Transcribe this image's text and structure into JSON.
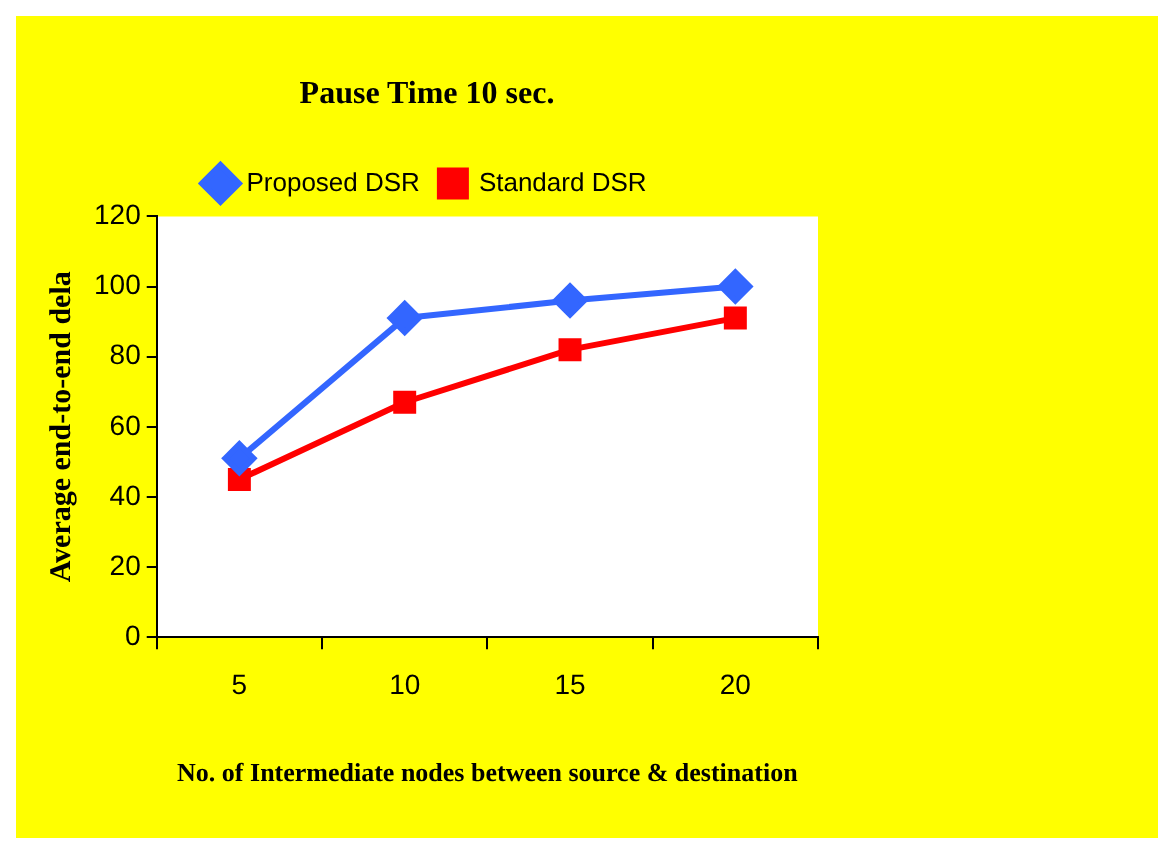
{
  "chart_data": {
    "type": "line",
    "title": "Pause Time 10 sec.",
    "xlabel": "No. of Intermediate nodes between source & destination",
    "ylabel": "Average end-to-end dela",
    "categories": [
      "5",
      "10",
      "15",
      "20"
    ],
    "series": [
      {
        "name": "Proposed DSR",
        "color": "#3366ff",
        "marker": "diamond",
        "values": [
          51,
          91,
          96,
          100
        ]
      },
      {
        "name": "Standard DSR",
        "color": "#ff0000",
        "marker": "square",
        "values": [
          45,
          67,
          82,
          91
        ]
      }
    ],
    "ylim": [
      0,
      120
    ],
    "yticks": [
      0,
      20,
      40,
      60,
      80,
      100,
      120
    ],
    "grid": false,
    "legend": "top",
    "line_style": "solid"
  }
}
